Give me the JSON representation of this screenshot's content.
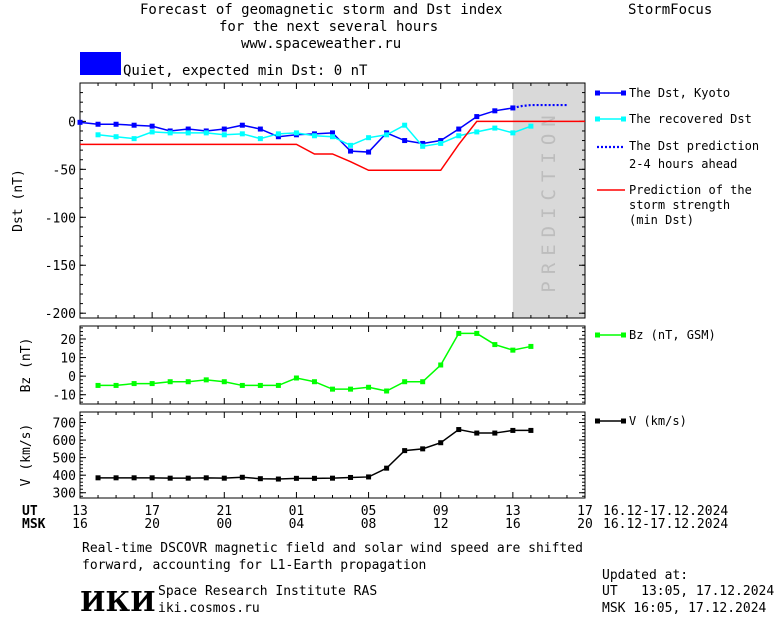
{
  "header": {
    "title_line1": "Forecast of geomagnetic storm and Dst index",
    "title_line2": "for the next several hours",
    "title_line3": "www.spaceweather.ru",
    "brand": "StormFocus"
  },
  "status": {
    "text": "Quiet, expected min Dst: 0 nT",
    "color": "#0000ff"
  },
  "prediction_zone": {
    "text": "PREDICTION",
    "color": "#d9d9d9"
  },
  "time_axis": {
    "ut_label": "UT",
    "msk_label": "MSK",
    "ut_ticks": [
      "13",
      "17",
      "21",
      "01",
      "05",
      "09",
      "13",
      "17"
    ],
    "msk_ticks": [
      "16",
      "20",
      "00",
      "04",
      "08",
      "12",
      "16",
      "20"
    ],
    "ut_range_label": "16.12-17.12.2024",
    "msk_range_label": "16.12-17.12.2024"
  },
  "legend": {
    "dst_kyoto": "The Dst, Kyoto",
    "dst_recovered": "The recovered Dst",
    "dst_prediction_l1": "The Dst prediction",
    "dst_prediction_l2": "2-4 hours ahead",
    "storm_l1": "Prediction of the",
    "storm_l2": "storm strength",
    "storm_l3": "(min Dst)",
    "bz": "Bz (nT, GSM)",
    "v": "V (km/s)"
  },
  "footer": {
    "note_line1": "Real-time DSCOVR magnetic field and solar wind speed are shifted",
    "note_line2": "forward, accounting for L1-Earth propagation",
    "logo_text": "ИКИ",
    "institute": "Space Research Institute RAS",
    "site": "iki.cosmos.ru",
    "updated_label": "Updated at:",
    "updated_ut": "UT   13:05, 17.12.2024",
    "updated_msk": "MSK 16:05, 17.12.2024"
  },
  "chart_data": [
    {
      "type": "line",
      "ylabel": "Dst (nT)",
      "xlim": [
        13,
        41
      ],
      "ylim": [
        -205,
        40
      ],
      "yticks": [
        0,
        -50,
        -100,
        -150,
        -200
      ],
      "prediction_start": 37,
      "series": [
        {
          "name": "The Dst, Kyoto",
          "color": "#0000ff",
          "marker": "square",
          "x": [
            13,
            14,
            15,
            16,
            17,
            18,
            19,
            20,
            21,
            22,
            23,
            24,
            25,
            26,
            27,
            28,
            29,
            30,
            31,
            32,
            33,
            34,
            35,
            36,
            37
          ],
          "y": [
            -1,
            -3,
            -3,
            -4,
            -5,
            -10,
            -8,
            -10,
            -8,
            -4,
            -8,
            -16,
            -14,
            -13,
            -12,
            -31,
            -32,
            -12,
            -20,
            -23,
            -20,
            -8,
            5,
            11,
            14
          ]
        },
        {
          "name": "The recovered Dst",
          "color": "#00ffff",
          "marker": "square",
          "x": [
            14,
            15,
            16,
            17,
            18,
            19,
            20,
            21,
            22,
            23,
            24,
            25,
            26,
            27,
            28,
            29,
            30,
            31,
            32,
            33,
            34,
            35,
            36,
            37,
            38
          ],
          "y": [
            -14,
            -16,
            -18,
            -11,
            -12,
            -12,
            -12,
            -14,
            -13,
            -18,
            -13,
            -12,
            -15,
            -16,
            -25,
            -17,
            -14,
            -4,
            -26,
            -23,
            -15,
            -11,
            -7,
            -12,
            -5
          ]
        },
        {
          "name": "The Dst prediction 2-4 hours ahead",
          "color": "#0000ff",
          "style": "dotted",
          "x": [
            37,
            37.5,
            38,
            38.5,
            39,
            39.5,
            40
          ],
          "y": [
            14,
            16,
            17,
            17,
            17,
            17,
            17
          ]
        },
        {
          "name": "Prediction of the storm strength (min Dst)",
          "color": "#ff0000",
          "style": "step",
          "x": [
            13,
            25,
            26,
            27,
            28,
            29,
            30,
            33,
            34,
            35,
            41
          ],
          "y": [
            -24,
            -24,
            -34,
            -34,
            -42,
            -51,
            -51,
            -51,
            -24,
            0,
            0
          ]
        }
      ]
    },
    {
      "type": "line",
      "ylabel": "Bz (nT)",
      "xlim": [
        13,
        41
      ],
      "ylim": [
        -15,
        27
      ],
      "yticks": [
        20,
        10,
        0,
        -10
      ],
      "series": [
        {
          "name": "Bz (nT, GSM)",
          "color": "#00ff00",
          "marker": "square",
          "x": [
            14,
            15,
            16,
            17,
            18,
            19,
            20,
            21,
            22,
            23,
            24,
            25,
            26,
            27,
            28,
            29,
            30,
            31,
            32,
            33,
            34,
            35,
            36,
            37,
            38
          ],
          "y": [
            -5,
            -5,
            -4,
            -4,
            -3,
            -3,
            -2,
            -3,
            -5,
            -5,
            -5,
            -1,
            -3,
            -7,
            -7,
            -6,
            -8,
            -3,
            -3,
            6,
            23,
            23,
            17,
            14,
            16
          ]
        }
      ]
    },
    {
      "type": "line",
      "ylabel": "V (km/s)",
      "xlim": [
        13,
        41
      ],
      "ylim": [
        270,
        760
      ],
      "yticks": [
        700,
        600,
        500,
        400,
        300
      ],
      "series": [
        {
          "name": "V (km/s)",
          "color": "#000000",
          "marker": "square",
          "x": [
            14,
            15,
            16,
            17,
            18,
            19,
            20,
            21,
            22,
            23,
            24,
            25,
            26,
            27,
            28,
            29,
            30,
            31,
            32,
            33,
            34,
            35,
            36,
            37,
            38
          ],
          "y": [
            385,
            385,
            385,
            385,
            383,
            383,
            385,
            383,
            388,
            380,
            378,
            382,
            382,
            383,
            387,
            390,
            440,
            540,
            550,
            585,
            660,
            640,
            640,
            655,
            655
          ]
        }
      ]
    }
  ]
}
